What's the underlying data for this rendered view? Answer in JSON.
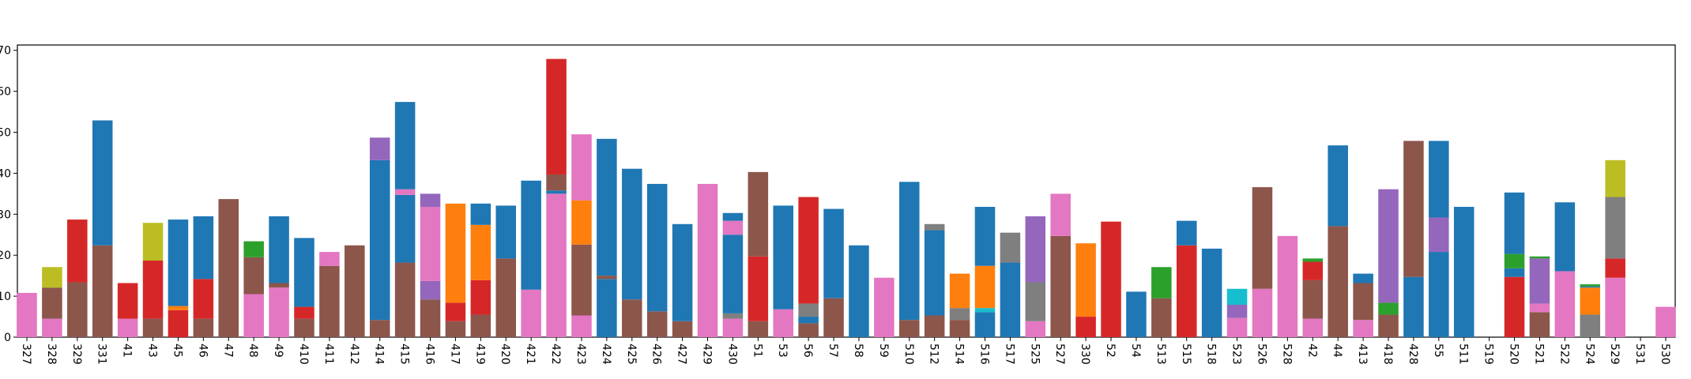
{
  "chart_data": {
    "type": "stacked-bar",
    "categories": [
      "327",
      "328",
      "329",
      "331",
      "41",
      "43",
      "45",
      "46",
      "47",
      "48",
      "49",
      "410",
      "411",
      "412",
      "414",
      "415",
      "416",
      "417",
      "419",
      "420",
      "421",
      "422",
      "423",
      "424",
      "425",
      "426",
      "427",
      "429",
      "430",
      "51",
      "53",
      "56",
      "57",
      "58",
      "59",
      "510",
      "512",
      "514",
      "516",
      "517",
      "525",
      "527",
      "330",
      "52",
      "54",
      "513",
      "515",
      "518",
      "523",
      "526",
      "528",
      "42",
      "44",
      "413",
      "418",
      "428",
      "55",
      "511",
      "519",
      "520",
      "521",
      "522",
      "524",
      "529",
      "531",
      "530"
    ],
    "stacks": [
      [
        {
          "color": "#e377c2",
          "value": 10.8
        }
      ],
      [
        {
          "color": "#e377c2",
          "value": 4.5
        },
        {
          "color": "#8c564b",
          "value": 7.6
        },
        {
          "color": "#bcbd22",
          "value": 5
        }
      ],
      [
        {
          "color": "#8c564b",
          "value": 13.4
        },
        {
          "color": "#d62728",
          "value": 15.3
        }
      ],
      [
        {
          "color": "#8c564b",
          "value": 22.4
        },
        {
          "color": "#1f77b4",
          "value": 30.5
        }
      ],
      [
        {
          "color": "#e377c2",
          "value": 4.5
        },
        {
          "color": "#d62728",
          "value": 8.7
        }
      ],
      [
        {
          "color": "#8c564b",
          "value": 4.5
        },
        {
          "color": "#d62728",
          "value": 14.2
        },
        {
          "color": "#bcbd22",
          "value": 9.2
        }
      ],
      [
        {
          "color": "#d62728",
          "value": 6.6
        },
        {
          "color": "#ff7f0e",
          "value": 1
        },
        {
          "color": "#1f77b4",
          "value": 21.1
        }
      ],
      [
        {
          "color": "#8c564b",
          "value": 4.5
        },
        {
          "color": "#d62728",
          "value": 9.7
        },
        {
          "color": "#1f77b4",
          "value": 15.3
        }
      ],
      [
        {
          "color": "#8c564b",
          "value": 33.7
        }
      ],
      [
        {
          "color": "#e377c2",
          "value": 10.5
        },
        {
          "color": "#8c564b",
          "value": 9
        },
        {
          "color": "#2ca02c",
          "value": 3.9
        }
      ],
      [
        {
          "color": "#e377c2",
          "value": 12.1
        },
        {
          "color": "#8c564b",
          "value": 1.1
        },
        {
          "color": "#1f77b4",
          "value": 16.3
        }
      ],
      [
        {
          "color": "#8c564b",
          "value": 4.5
        },
        {
          "color": "#d62728",
          "value": 2.9
        },
        {
          "color": "#1f77b4",
          "value": 16.8
        }
      ],
      [
        {
          "color": "#8c564b",
          "value": 17.4
        },
        {
          "color": "#e377c2",
          "value": 3.4
        }
      ],
      [
        {
          "color": "#8c564b",
          "value": 22.4
        }
      ],
      [
        {
          "color": "#8c564b",
          "value": 4.2
        },
        {
          "color": "#1f77b4",
          "value": 39
        },
        {
          "color": "#9467bd",
          "value": 5.5
        }
      ],
      [
        {
          "color": "#8c564b",
          "value": 18.2
        },
        {
          "color": "#1f77b4",
          "value": 16.5
        },
        {
          "color": "#e377c2",
          "value": 1.4
        },
        {
          "color": "#1f77b4",
          "value": 21.3
        }
      ],
      [
        {
          "color": "#8c564b",
          "value": 9.2
        },
        {
          "color": "#9467bd",
          "value": 4.5
        },
        {
          "color": "#e377c2",
          "value": 18.1
        },
        {
          "color": "#9467bd",
          "value": 3.2
        }
      ],
      [
        {
          "color": "#8c564b",
          "value": 3.9
        },
        {
          "color": "#d62728",
          "value": 4.5
        },
        {
          "color": "#ff7f0e",
          "value": 24.2
        }
      ],
      [
        {
          "color": "#8c564b",
          "value": 5.5
        },
        {
          "color": "#d62728",
          "value": 8.4
        },
        {
          "color": "#ff7f0e",
          "value": 13.5
        },
        {
          "color": "#1f77b4",
          "value": 5.2
        }
      ],
      [
        {
          "color": "#8c564b",
          "value": 19.2
        },
        {
          "color": "#1f77b4",
          "value": 12.9
        }
      ],
      [
        {
          "color": "#e377c2",
          "value": 11.6
        },
        {
          "color": "#1f77b4",
          "value": 26.6
        }
      ],
      [
        {
          "color": "#e377c2",
          "value": 35
        },
        {
          "color": "#1f77b4",
          "value": 0.8
        },
        {
          "color": "#8c564b",
          "value": 3.9
        },
        {
          "color": "#d62728",
          "value": 28.2
        }
      ],
      [
        {
          "color": "#e377c2",
          "value": 5.3
        },
        {
          "color": "#8c564b",
          "value": 17.3
        },
        {
          "color": "#ff7f0e",
          "value": 10.8
        },
        {
          "color": "#e377c2",
          "value": 16.1
        }
      ],
      [
        {
          "color": "#1f77b4",
          "value": 14.2
        },
        {
          "color": "#8c564b",
          "value": 0.8
        },
        {
          "color": "#1f77b4",
          "value": 33.4
        }
      ],
      [
        {
          "color": "#8c564b",
          "value": 9.2
        },
        {
          "color": "#1f77b4",
          "value": 31.9
        }
      ],
      [
        {
          "color": "#8c564b",
          "value": 6.3
        },
        {
          "color": "#1f77b4",
          "value": 31.1
        }
      ],
      [
        {
          "color": "#8c564b",
          "value": 3.9
        },
        {
          "color": "#1f77b4",
          "value": 23.7
        }
      ],
      [
        {
          "color": "#e377c2",
          "value": 37.4
        }
      ],
      [
        {
          "color": "#e377c2",
          "value": 4.5
        },
        {
          "color": "#7f7f7f",
          "value": 1.3
        },
        {
          "color": "#1f77b4",
          "value": 19.2
        },
        {
          "color": "#e377c2",
          "value": 3.4
        },
        {
          "color": "#1f77b4",
          "value": 1.9
        }
      ],
      [
        {
          "color": "#8c564b",
          "value": 3.9
        },
        {
          "color": "#d62728",
          "value": 15.8
        },
        {
          "color": "#8c564b",
          "value": 20.6
        }
      ],
      [
        {
          "color": "#e377c2",
          "value": 6.8
        },
        {
          "color": "#1f77b4",
          "value": 25.3
        }
      ],
      [
        {
          "color": "#8c564b",
          "value": 3.4
        },
        {
          "color": "#1f77b4",
          "value": 1.6
        },
        {
          "color": "#7f7f7f",
          "value": 3.2
        },
        {
          "color": "#d62728",
          "value": 26
        }
      ],
      [
        {
          "color": "#8c564b",
          "value": 9.5
        },
        {
          "color": "#1f77b4",
          "value": 21.8
        }
      ],
      [
        {
          "color": "#1f77b4",
          "value": 22.4
        }
      ],
      [
        {
          "color": "#e377c2",
          "value": 14.5
        }
      ],
      [
        {
          "color": "#8c564b",
          "value": 4.2
        },
        {
          "color": "#1f77b4",
          "value": 33.7
        }
      ],
      [
        {
          "color": "#8c564b",
          "value": 5.3
        },
        {
          "color": "#1f77b4",
          "value": 20.8
        },
        {
          "color": "#7f7f7f",
          "value": 1.5
        }
      ],
      [
        {
          "color": "#8c564b",
          "value": 4.2
        },
        {
          "color": "#7f7f7f",
          "value": 2.9
        },
        {
          "color": "#ff7f0e",
          "value": 8.4
        }
      ],
      [
        {
          "color": "#1f77b4",
          "value": 6.1
        },
        {
          "color": "#17becf",
          "value": 1
        },
        {
          "color": "#ff7f0e",
          "value": 10.3
        },
        {
          "color": "#1f77b4",
          "value": 14.4
        }
      ],
      [
        {
          "color": "#1f77b4",
          "value": 18.2
        },
        {
          "color": "#7f7f7f",
          "value": 7.3
        }
      ],
      [
        {
          "color": "#e377c2",
          "value": 3.9
        },
        {
          "color": "#7f7f7f",
          "value": 9.5
        },
        {
          "color": "#9467bd",
          "value": 16.1
        }
      ],
      [
        {
          "color": "#8c564b",
          "value": 24.7
        },
        {
          "color": "#e377c2",
          "value": 10.3
        }
      ],
      [
        {
          "color": "#d62728",
          "value": 5
        },
        {
          "color": "#ff7f0e",
          "value": 17.9
        }
      ],
      [
        {
          "color": "#d62728",
          "value": 28.2
        }
      ],
      [
        {
          "color": "#1f77b4",
          "value": 11.1
        }
      ],
      [
        {
          "color": "#8c564b",
          "value": 9.5
        },
        {
          "color": "#2ca02c",
          "value": 7.6
        }
      ],
      [
        {
          "color": "#d62728",
          "value": 22.4
        },
        {
          "color": "#1f77b4",
          "value": 6
        }
      ],
      [
        {
          "color": "#1f77b4",
          "value": 21.6
        }
      ],
      [
        {
          "color": "#e377c2",
          "value": 4.7
        },
        {
          "color": "#9467bd",
          "value": 3.2
        },
        {
          "color": "#17becf",
          "value": 3.9
        }
      ],
      [
        {
          "color": "#e377c2",
          "value": 11.8
        },
        {
          "color": "#8c564b",
          "value": 24.8
        }
      ],
      [
        {
          "color": "#e377c2",
          "value": 24.7
        }
      ],
      [
        {
          "color": "#e377c2",
          "value": 4.5
        },
        {
          "color": "#8c564b",
          "value": 9.4
        },
        {
          "color": "#d62728",
          "value": 4.5
        },
        {
          "color": "#2ca02c",
          "value": 0.8
        }
      ],
      [
        {
          "color": "#8c564b",
          "value": 27.1
        },
        {
          "color": "#1f77b4",
          "value": 19.7
        }
      ],
      [
        {
          "color": "#e377c2",
          "value": 4.2
        },
        {
          "color": "#8c564b",
          "value": 9
        },
        {
          "color": "#1f77b4",
          "value": 2.3
        }
      ],
      [
        {
          "color": "#8c564b",
          "value": 5.5
        },
        {
          "color": "#2ca02c",
          "value": 2.9
        },
        {
          "color": "#9467bd",
          "value": 27.7
        }
      ],
      [
        {
          "color": "#1f77b4",
          "value": 14.7
        },
        {
          "color": "#8c564b",
          "value": 33.2
        }
      ],
      [
        {
          "color": "#1f77b4",
          "value": 20.8
        },
        {
          "color": "#9467bd",
          "value": 8.4
        },
        {
          "color": "#1f77b4",
          "value": 18.7
        }
      ],
      [
        {
          "color": "#1f77b4",
          "value": 31.8
        }
      ],
      [],
      [
        {
          "color": "#d62728",
          "value": 14.7
        },
        {
          "color": "#1f77b4",
          "value": 2.1
        },
        {
          "color": "#2ca02c",
          "value": 3.5
        },
        {
          "color": "#1f77b4",
          "value": 15
        }
      ],
      [
        {
          "color": "#8c564b",
          "value": 6.1
        },
        {
          "color": "#e377c2",
          "value": 2.1
        },
        {
          "color": "#9467bd",
          "value": 11
        },
        {
          "color": "#2ca02c",
          "value": 0.5
        }
      ],
      [
        {
          "color": "#e377c2",
          "value": 16.1
        },
        {
          "color": "#1f77b4",
          "value": 16.8
        }
      ],
      [
        {
          "color": "#7f7f7f",
          "value": 5.5
        },
        {
          "color": "#ff7f0e",
          "value": 6.6
        },
        {
          "color": "#1f77b4",
          "value": 0.3
        },
        {
          "color": "#2ca02c",
          "value": 0.5
        }
      ],
      [
        {
          "color": "#e377c2",
          "value": 14.5
        },
        {
          "color": "#d62728",
          "value": 4.7
        },
        {
          "color": "#7f7f7f",
          "value": 15
        },
        {
          "color": "#bcbd22",
          "value": 9
        }
      ],
      [],
      [
        {
          "color": "#e377c2",
          "value": 7.4
        }
      ]
    ],
    "ylim": [
      0,
      71.3
    ],
    "yticks": [
      0,
      10,
      20,
      30,
      40,
      50,
      60,
      70
    ]
  }
}
